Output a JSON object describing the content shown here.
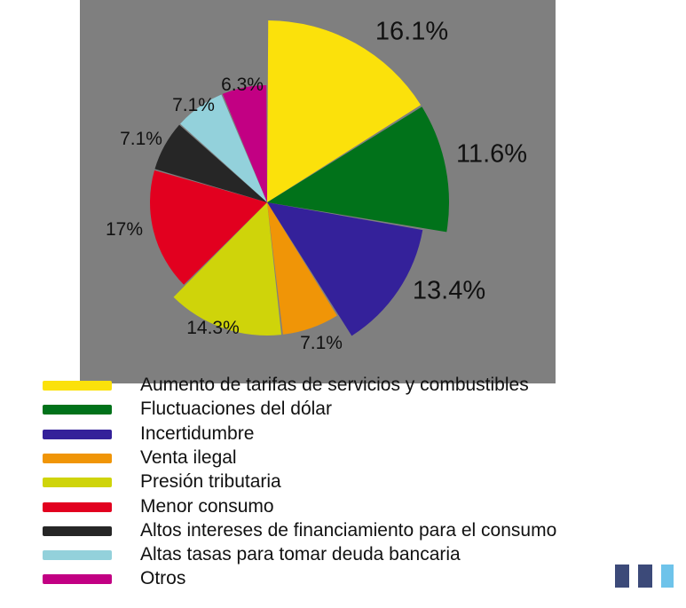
{
  "chart_data": {
    "type": "pie",
    "title": "",
    "slices": [
      {
        "label": "Aumento de tarifas de servicios y combustibles",
        "value": 16.1,
        "value_label": "16.1%",
        "color": "#fbe10b"
      },
      {
        "label": "Fluctuaciones del dólar",
        "value": 11.6,
        "value_label": "11.6%",
        "color": "#01721a"
      },
      {
        "label": "Incertidumbre",
        "value": 13.4,
        "value_label": "13.4%",
        "color": "#34219a"
      },
      {
        "label": "Venta ilegal",
        "value": 7.1,
        "value_label": "7.1%",
        "color": "#f09507"
      },
      {
        "label": "Presión tributaria",
        "value": 14.3,
        "value_label": "14.3%",
        "color": "#cfd40a"
      },
      {
        "label": "Menor consumo",
        "value": 17,
        "value_label": "17%",
        "color": "#e2001f"
      },
      {
        "label": "Altos intereses de financiamiento para el consumo",
        "value": 7.1,
        "value_label": "7.1%",
        "color": "#262626"
      },
      {
        "label": "Altas tasas para tomar deuda bancaria",
        "value": 7.1,
        "value_label": "7.1%",
        "color": "#93d1db"
      },
      {
        "label": "Otros",
        "value": 6.3,
        "value_label": "6.3%",
        "color": "#c20083"
      }
    ],
    "legend_position": "bottom",
    "plot_background": "#7f7f7f"
  },
  "logo_colors": [
    "#3c4a79",
    "#3c4a79",
    "#6ec3ea"
  ]
}
